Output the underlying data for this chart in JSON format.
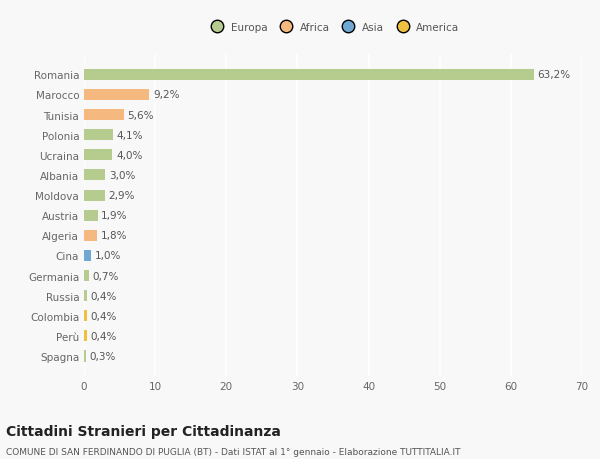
{
  "countries": [
    "Romania",
    "Marocco",
    "Tunisia",
    "Polonia",
    "Ucraina",
    "Albania",
    "Moldova",
    "Austria",
    "Algeria",
    "Cina",
    "Germania",
    "Russia",
    "Colombia",
    "Perù",
    "Spagna"
  ],
  "values": [
    63.2,
    9.2,
    5.6,
    4.1,
    4.0,
    3.0,
    2.9,
    1.9,
    1.8,
    1.0,
    0.7,
    0.4,
    0.4,
    0.4,
    0.3
  ],
  "labels": [
    "63,2%",
    "9,2%",
    "5,6%",
    "4,1%",
    "4,0%",
    "3,0%",
    "2,9%",
    "1,9%",
    "1,8%",
    "1,0%",
    "0,7%",
    "0,4%",
    "0,4%",
    "0,4%",
    "0,3%"
  ],
  "continents": [
    "Europa",
    "Africa",
    "Africa",
    "Europa",
    "Europa",
    "Europa",
    "Europa",
    "Europa",
    "Africa",
    "Asia",
    "Europa",
    "Europa",
    "America",
    "America",
    "Europa"
  ],
  "continent_colors": {
    "Europa": "#b5cc8e",
    "Africa": "#f5b97f",
    "Asia": "#6fa8d5",
    "America": "#f0c040"
  },
  "legend_order": [
    "Europa",
    "Africa",
    "Asia",
    "America"
  ],
  "legend_colors": [
    "#b5cc8e",
    "#f5b97f",
    "#6fa8d5",
    "#f0c040"
  ],
  "xlim": [
    0,
    70
  ],
  "xticks": [
    0,
    10,
    20,
    30,
    40,
    50,
    60,
    70
  ],
  "title": "Cittadini Stranieri per Cittadinanza",
  "subtitle": "COMUNE DI SAN FERDINANDO DI PUGLIA (BT) - Dati ISTAT al 1° gennaio - Elaborazione TUTTITALIA.IT",
  "background_color": "#f8f8f8",
  "bar_height": 0.55,
  "grid_color": "#ffffff",
  "label_fontsize": 7.5,
  "tick_fontsize": 7.5,
  "title_fontsize": 10,
  "subtitle_fontsize": 6.5
}
